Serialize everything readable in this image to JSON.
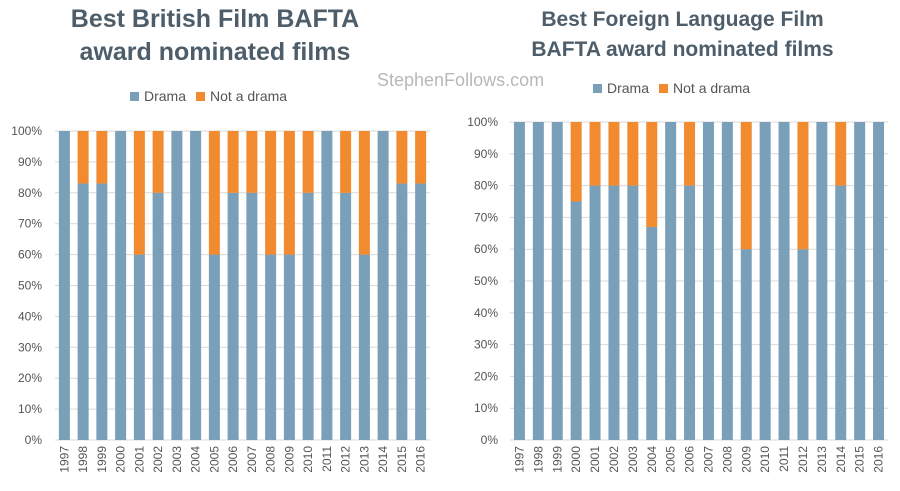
{
  "watermark": "StephenFollows.com",
  "colors": {
    "drama": "#7a9fb8",
    "not_drama": "#f28a30",
    "grid": "#d9d9d9"
  },
  "chart_data": [
    {
      "type": "bar",
      "stacked": true,
      "title": "Best British Film BAFTA award nominated films",
      "title_lines": [
        "Best British Film BAFTA",
        "award nominated films"
      ],
      "legend": {
        "position": "top",
        "items": [
          "Drama",
          "Not a drama"
        ]
      },
      "categories": [
        "1997",
        "1998",
        "1999",
        "2000",
        "2001",
        "2002",
        "2003",
        "2004",
        "2005",
        "2006",
        "2007",
        "2008",
        "2009",
        "2010",
        "2011",
        "2012",
        "2013",
        "2014",
        "2015",
        "2016"
      ],
      "series": [
        {
          "name": "Drama",
          "values": [
            100,
            83,
            83,
            100,
            60,
            80,
            100,
            100,
            60,
            80,
            80,
            60,
            60,
            80,
            100,
            80,
            60,
            100,
            83,
            83
          ]
        },
        {
          "name": "Not a drama",
          "values": [
            0,
            17,
            17,
            0,
            40,
            20,
            0,
            0,
            40,
            20,
            20,
            40,
            40,
            20,
            0,
            20,
            40,
            0,
            17,
            17
          ]
        }
      ],
      "ylim": [
        0,
        100
      ],
      "yticks": [
        "0%",
        "10%",
        "20%",
        "30%",
        "40%",
        "50%",
        "60%",
        "70%",
        "80%",
        "90%",
        "100%"
      ],
      "grid": true
    },
    {
      "type": "bar",
      "stacked": true,
      "title": "Best Foreign Language Film BAFTA award nominated films",
      "title_lines": [
        "Best Foreign Language Film",
        "BAFTA award nominated films"
      ],
      "legend": {
        "position": "top",
        "items": [
          "Drama",
          "Not a drama"
        ]
      },
      "categories": [
        "1997",
        "1998",
        "1999",
        "2000",
        "2001",
        "2002",
        "2003",
        "2004",
        "2005",
        "2006",
        "2007",
        "2008",
        "2009",
        "2010",
        "2011",
        "2012",
        "2013",
        "2014",
        "2015",
        "2016"
      ],
      "series": [
        {
          "name": "Drama",
          "values": [
            100,
            100,
            100,
            75,
            80,
            80,
            80,
            67,
            100,
            80,
            100,
            100,
            60,
            100,
            100,
            60,
            100,
            80,
            100,
            100
          ]
        },
        {
          "name": "Not a drama",
          "values": [
            0,
            0,
            0,
            25,
            20,
            20,
            20,
            33,
            0,
            20,
            0,
            0,
            40,
            0,
            0,
            40,
            0,
            20,
            0,
            0
          ]
        }
      ],
      "ylim": [
        0,
        100
      ],
      "yticks": [
        "0%",
        "10%",
        "20%",
        "30%",
        "40%",
        "50%",
        "60%",
        "70%",
        "80%",
        "90%",
        "100%"
      ],
      "grid": true
    }
  ]
}
